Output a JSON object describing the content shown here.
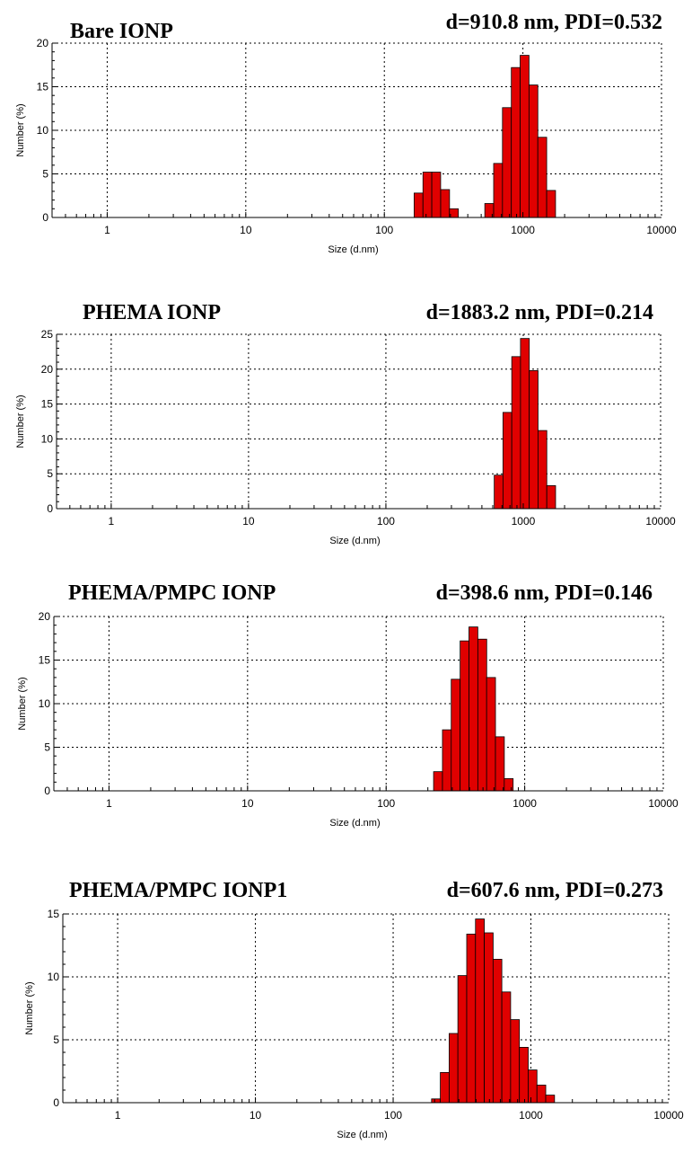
{
  "colors": {
    "bar_fill": "#e00000",
    "bar_stroke": "#000000",
    "axis": "#000000",
    "background": "#ffffff"
  },
  "chart_data": [
    {
      "type": "bar",
      "title": "Bare IONP",
      "stats": "d=910.8 nm, PDI=0.532",
      "xlabel": "Size (d.nm)",
      "ylabel": "Number (%)",
      "xscale": "log",
      "xlim": [
        0.4,
        10000
      ],
      "ylim": [
        0,
        20
      ],
      "xticks": [
        "1",
        "10",
        "100",
        "1000",
        "10000"
      ],
      "yticks": [
        "0",
        "5",
        "10",
        "15",
        "20"
      ],
      "grid": true,
      "bins": [
        {
          "size": 164,
          "value": 2.8
        },
        {
          "size": 190,
          "value": 5.2
        },
        {
          "size": 220,
          "value": 5.2
        },
        {
          "size": 255,
          "value": 3.2
        },
        {
          "size": 295,
          "value": 1.0
        },
        {
          "size": 531,
          "value": 1.6
        },
        {
          "size": 615,
          "value": 6.2
        },
        {
          "size": 712,
          "value": 12.6
        },
        {
          "size": 825,
          "value": 17.2
        },
        {
          "size": 955,
          "value": 18.6
        },
        {
          "size": 1106,
          "value": 15.2
        },
        {
          "size": 1281,
          "value": 9.2
        },
        {
          "size": 1484,
          "value": 3.1
        }
      ]
    },
    {
      "type": "bar",
      "title": "PHEMA IONP",
      "stats": "d=1883.2 nm, PDI=0.214",
      "xlabel": "Size (d.nm)",
      "ylabel": "Number (%)",
      "xscale": "log",
      "xlim": [
        0.4,
        10000
      ],
      "ylim": [
        0,
        25
      ],
      "xticks": [
        "1",
        "10",
        "100",
        "1000",
        "10000"
      ],
      "yticks": [
        "0",
        "5",
        "10",
        "15",
        "20",
        "25"
      ],
      "grid": true,
      "bins": [
        {
          "size": 615,
          "value": 4.8
        },
        {
          "size": 712,
          "value": 13.8
        },
        {
          "size": 825,
          "value": 21.8
        },
        {
          "size": 955,
          "value": 24.4
        },
        {
          "size": 1106,
          "value": 19.8
        },
        {
          "size": 1281,
          "value": 11.2
        },
        {
          "size": 1484,
          "value": 3.3
        }
      ]
    },
    {
      "type": "bar",
      "title": "PHEMA/PMPC IONP",
      "stats": "d=398.6 nm, PDI=0.146",
      "xlabel": "Size (d.nm)",
      "ylabel": "Number (%)",
      "xscale": "log",
      "xlim": [
        0.4,
        10000
      ],
      "ylim": [
        0,
        20
      ],
      "xticks": [
        "1",
        "10",
        "100",
        "1000",
        "10000"
      ],
      "yticks": [
        "0",
        "5",
        "10",
        "15",
        "20"
      ],
      "grid": true,
      "bins": [
        {
          "size": 220,
          "value": 2.2
        },
        {
          "size": 255,
          "value": 7.0
        },
        {
          "size": 295,
          "value": 12.8
        },
        {
          "size": 342,
          "value": 17.2
        },
        {
          "size": 396,
          "value": 18.8
        },
        {
          "size": 459,
          "value": 17.4
        },
        {
          "size": 531,
          "value": 13.0
        },
        {
          "size": 615,
          "value": 6.2
        },
        {
          "size": 712,
          "value": 1.4
        }
      ]
    },
    {
      "type": "bar",
      "title": "PHEMA/PMPC IONP1",
      "stats": "d=607.6 nm, PDI=0.273",
      "xlabel": "Size (d.nm)",
      "ylabel": "Number (%)",
      "xscale": "log",
      "xlim": [
        0.4,
        10000
      ],
      "ylim": [
        0,
        15
      ],
      "xticks": [
        "1",
        "10",
        "100",
        "1000",
        "10000"
      ],
      "yticks": [
        "0",
        "5",
        "10",
        "15"
      ],
      "grid": true,
      "bins": [
        {
          "size": 190,
          "value": 0.3
        },
        {
          "size": 220,
          "value": 2.4
        },
        {
          "size": 255,
          "value": 5.5
        },
        {
          "size": 295,
          "value": 10.1
        },
        {
          "size": 342,
          "value": 13.4
        },
        {
          "size": 396,
          "value": 14.6
        },
        {
          "size": 459,
          "value": 13.5
        },
        {
          "size": 531,
          "value": 11.4
        },
        {
          "size": 615,
          "value": 8.8
        },
        {
          "size": 712,
          "value": 6.6
        },
        {
          "size": 825,
          "value": 4.4
        },
        {
          "size": 955,
          "value": 2.6
        },
        {
          "size": 1106,
          "value": 1.4
        },
        {
          "size": 1281,
          "value": 0.6
        }
      ]
    }
  ]
}
